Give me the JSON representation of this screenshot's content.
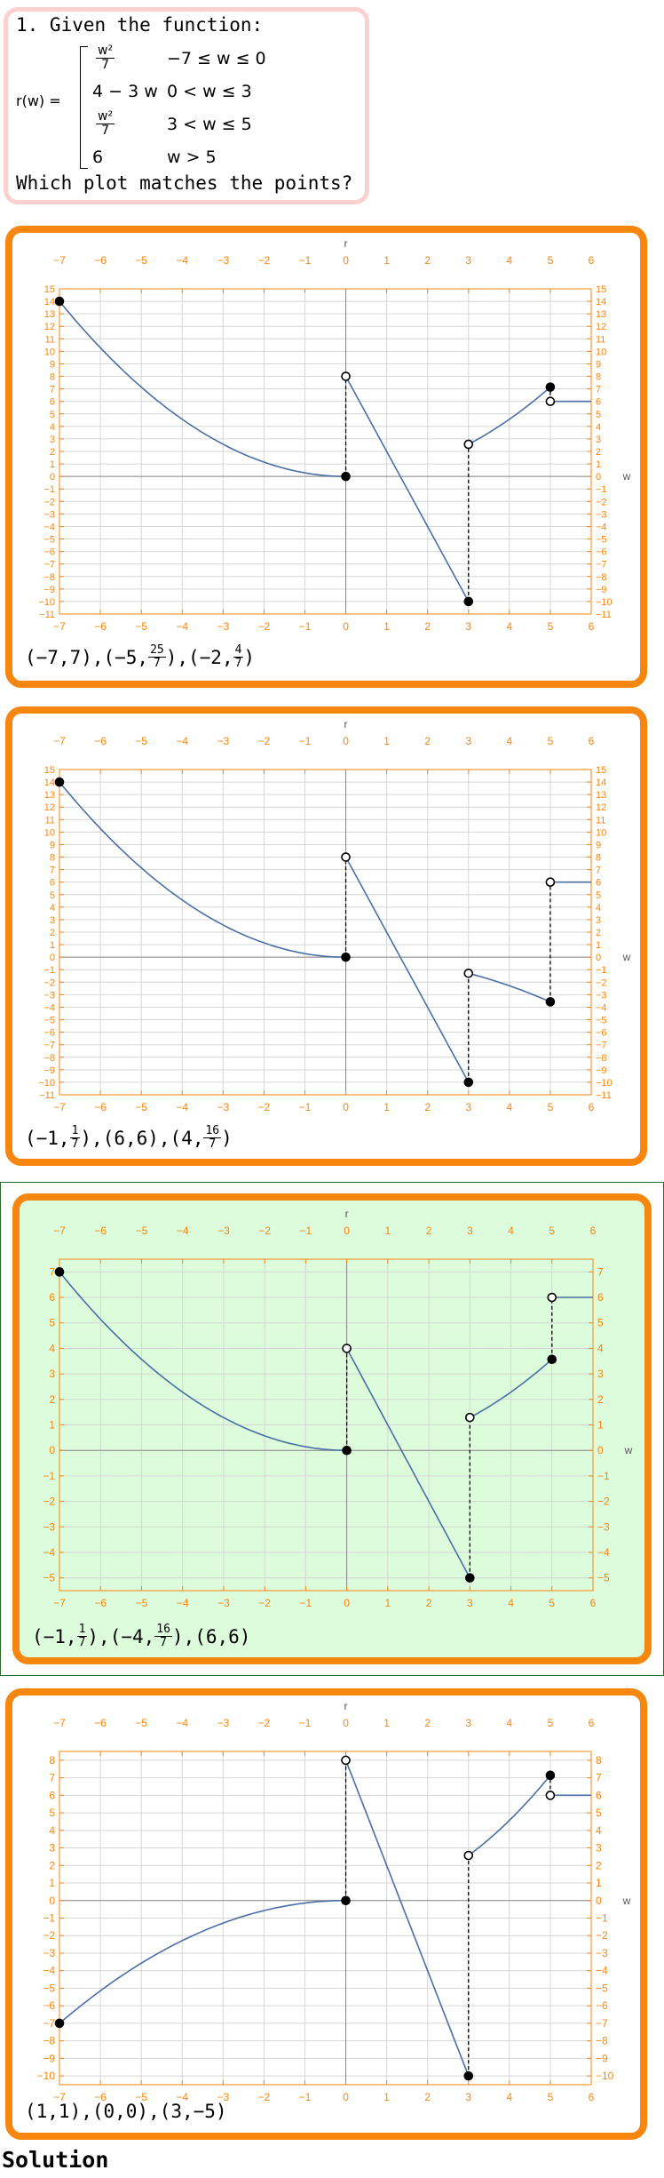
{
  "question": {
    "prompt": "1. Given the function:",
    "func_name": "r(w) =",
    "pieces": [
      {
        "expr_num": "w²",
        "expr_den": "7",
        "condition": "−7 ≤ w ≤ 0"
      },
      {
        "expr": "4 − 3 w",
        "condition": "0 < w ≤ 3"
      },
      {
        "expr_num": "w²",
        "expr_den": "7",
        "condition": "3 < w ≤ 5"
      },
      {
        "expr": "6",
        "condition": "w > 5"
      }
    ],
    "ask": "Which plot matches the points?"
  },
  "options": [
    {
      "points_parts": [
        "(−7,7),(−5,",
        {
          "num": "25",
          "den": "7"
        },
        "),(−2,",
        {
          "num": "4",
          "den": "7"
        },
        ")"
      ],
      "xlabel": "w",
      "ylabel": "r"
    },
    {
      "points_parts": [
        "(−1,",
        {
          "num": "1",
          "den": "7"
        },
        "),(6,6),(4,",
        {
          "num": "16",
          "den": "7"
        },
        ")"
      ],
      "xlabel": "w",
      "ylabel": "r"
    },
    {
      "points_parts": [
        "(−1,",
        {
          "num": "1",
          "den": "7"
        },
        "),(−4,",
        {
          "num": "16",
          "den": "7"
        },
        "),(6,6)"
      ],
      "xlabel": "w",
      "ylabel": "r",
      "selected": true
    },
    {
      "points_parts": [
        "(1,1),(0,0),(3,−5)"
      ],
      "xlabel": "w",
      "ylabel": "r"
    }
  ],
  "solution_label": "Solution",
  "colors": {
    "orange": "#f7860f",
    "curve": "#4a6fa5",
    "selected_fill": "#dcfcdc",
    "question_border": "#fdd0d0"
  },
  "chart_data": [
    {
      "type": "line",
      "xlabel": "w",
      "ylabel": "r",
      "xlim": [
        -7,
        6
      ],
      "ylim": [
        -11,
        15
      ],
      "xticks": [
        -7,
        -6,
        -5,
        -4,
        -3,
        -2,
        -1,
        0,
        1,
        2,
        3,
        4,
        5,
        6
      ],
      "yticks": [
        -11,
        -10,
        -9,
        -8,
        -7,
        -6,
        -5,
        -4,
        -3,
        -2,
        -1,
        0,
        1,
        2,
        3,
        4,
        5,
        6,
        7,
        8,
        9,
        10,
        11,
        12,
        13,
        14,
        15
      ],
      "pieces": [
        {
          "fn": "sq",
          "k": 0.2857,
          "from": -7,
          "to": 0
        },
        {
          "fn": "lin",
          "a": 8,
          "b": -6,
          "from": 0,
          "to": 3
        },
        {
          "fn": "sq",
          "k": 0.2857,
          "from": 3,
          "to": 5
        },
        {
          "fn": "const",
          "c": 6,
          "from": 5,
          "to": 6
        }
      ],
      "dots": [
        [
          -7,
          14,
          1
        ],
        [
          0,
          0,
          1
        ],
        [
          0,
          8,
          0
        ],
        [
          3,
          -10,
          1
        ],
        [
          3,
          2.57,
          0
        ],
        [
          5,
          7.14,
          1
        ],
        [
          5,
          6,
          0
        ]
      ],
      "dashes": [
        [
          0,
          0,
          8
        ],
        [
          3,
          -10,
          2.57
        ],
        [
          5,
          6,
          7.14
        ]
      ]
    },
    {
      "type": "line",
      "xlabel": "w",
      "ylabel": "r",
      "xlim": [
        -7,
        6
      ],
      "ylim": [
        -11,
        15
      ],
      "xticks": [
        -7,
        -6,
        -5,
        -4,
        -3,
        -2,
        -1,
        0,
        1,
        2,
        3,
        4,
        5,
        6
      ],
      "yticks": [
        -11,
        -10,
        -9,
        -8,
        -7,
        -6,
        -5,
        -4,
        -3,
        -2,
        -1,
        0,
        1,
        2,
        3,
        4,
        5,
        6,
        7,
        8,
        9,
        10,
        11,
        12,
        13,
        14,
        15
      ],
      "pieces": [
        {
          "fn": "sq",
          "k": 0.2857,
          "from": -7,
          "to": 0
        },
        {
          "fn": "lin",
          "a": 8,
          "b": -6,
          "from": 0,
          "to": 3
        },
        {
          "fn": "sq",
          "k": -0.1429,
          "from": 3,
          "to": 5
        },
        {
          "fn": "const",
          "c": 6,
          "from": 5,
          "to": 6
        }
      ],
      "dots": [
        [
          -7,
          14,
          1
        ],
        [
          0,
          0,
          1
        ],
        [
          0,
          8,
          0
        ],
        [
          3,
          -10,
          1
        ],
        [
          3,
          -1.29,
          0
        ],
        [
          5,
          -3.57,
          1
        ],
        [
          5,
          6,
          0
        ]
      ],
      "dashes": [
        [
          0,
          0,
          8
        ],
        [
          3,
          -10,
          -1.29
        ],
        [
          5,
          -3.57,
          6
        ]
      ]
    },
    {
      "type": "line",
      "xlabel": "w",
      "ylabel": "r",
      "xlim": [
        -7,
        6
      ],
      "ylim": [
        -5.5,
        7.5
      ],
      "xticks": [
        -7,
        -6,
        -5,
        -4,
        -3,
        -2,
        -1,
        0,
        1,
        2,
        3,
        4,
        5,
        6
      ],
      "yticks": [
        -5,
        -4,
        -3,
        -2,
        -1,
        0,
        1,
        2,
        3,
        4,
        5,
        6,
        7
      ],
      "pieces": [
        {
          "fn": "sq",
          "k": 0.1429,
          "from": -7,
          "to": 0
        },
        {
          "fn": "lin",
          "a": 4,
          "b": -3,
          "from": 0,
          "to": 3
        },
        {
          "fn": "sq",
          "k": 0.1429,
          "from": 3,
          "to": 5
        },
        {
          "fn": "const",
          "c": 6,
          "from": 5,
          "to": 6
        }
      ],
      "dots": [
        [
          -7,
          7,
          1
        ],
        [
          0,
          0,
          1
        ],
        [
          0,
          4,
          0
        ],
        [
          3,
          -5,
          1
        ],
        [
          3,
          1.29,
          0
        ],
        [
          5,
          3.57,
          1
        ],
        [
          5,
          6,
          0
        ]
      ],
      "dashes": [
        [
          0,
          0,
          4
        ],
        [
          3,
          -5,
          1.29
        ],
        [
          5,
          3.57,
          6
        ]
      ]
    },
    {
      "type": "line",
      "xlabel": "w",
      "ylabel": "r",
      "xlim": [
        -7,
        6
      ],
      "ylim": [
        -10.5,
        8.5
      ],
      "xticks": [
        -7,
        -6,
        -5,
        -4,
        -3,
        -2,
        -1,
        0,
        1,
        2,
        3,
        4,
        5,
        6
      ],
      "yticks": [
        -10,
        -9,
        -8,
        -7,
        -6,
        -5,
        -4,
        -3,
        -2,
        -1,
        0,
        1,
        2,
        3,
        4,
        5,
        6,
        7,
        8
      ],
      "pieces": [
        {
          "fn": "sq",
          "k": -0.1429,
          "from": -7,
          "to": 0
        },
        {
          "fn": "lin",
          "a": 8,
          "b": -6,
          "from": 0,
          "to": 3
        },
        {
          "fn": "sq",
          "k": 0.2857,
          "from": 3,
          "to": 5
        },
        {
          "fn": "const",
          "c": 6,
          "from": 5,
          "to": 6
        }
      ],
      "dots": [
        [
          -7,
          -7,
          1
        ],
        [
          0,
          0,
          1
        ],
        [
          0,
          8,
          0
        ],
        [
          3,
          -10,
          1
        ],
        [
          3,
          2.57,
          0
        ],
        [
          5,
          7.14,
          1
        ],
        [
          5,
          6,
          0
        ]
      ],
      "dashes": [
        [
          0,
          0,
          8
        ],
        [
          3,
          -10,
          2.57
        ],
        [
          5,
          6,
          7.14
        ]
      ]
    }
  ]
}
